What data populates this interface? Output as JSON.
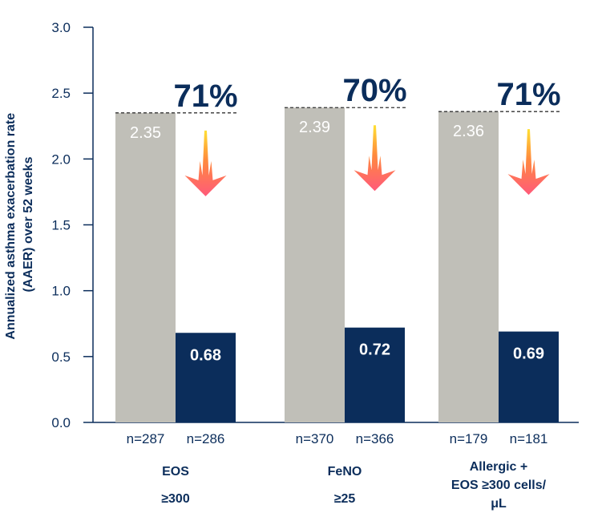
{
  "chart_data": {
    "type": "bar",
    "ylabel": [
      "Annualized asthma exacerbation rate",
      "(AAER) over 52 weeks"
    ],
    "ylim": [
      0,
      3.0
    ],
    "yticks": [
      "0.0",
      "0.5",
      "1.0",
      "1.5",
      "2.0",
      "2.5",
      "3.0"
    ],
    "grid": false,
    "colors": {
      "placebo": "#c0bfb8",
      "treatment": "#0b2d5b",
      "text": "#0b2d5b",
      "arrow_top": "#ffe033",
      "arrow_bottom": "#ff5a7a"
    },
    "groups": [
      {
        "label": [
          "EOS",
          "≥300"
        ],
        "values": [
          2.35,
          0.68
        ],
        "value_labels": [
          "2.35",
          "0.68"
        ],
        "n": [
          "n=287",
          "n=286"
        ],
        "reduction": "71%"
      },
      {
        "label": [
          "FeNO",
          "≥25"
        ],
        "values": [
          2.39,
          0.72
        ],
        "value_labels": [
          "2.39",
          "0.72"
        ],
        "n": [
          "n=370",
          "n=366"
        ],
        "reduction": "70%"
      },
      {
        "label": [
          "Allergic +",
          "EOS ≥300 cells/",
          "μL"
        ],
        "values": [
          2.36,
          0.69
        ],
        "value_labels": [
          "2.36",
          "0.69"
        ],
        "n": [
          "n=179",
          "n=181"
        ],
        "reduction": "71%"
      }
    ]
  }
}
